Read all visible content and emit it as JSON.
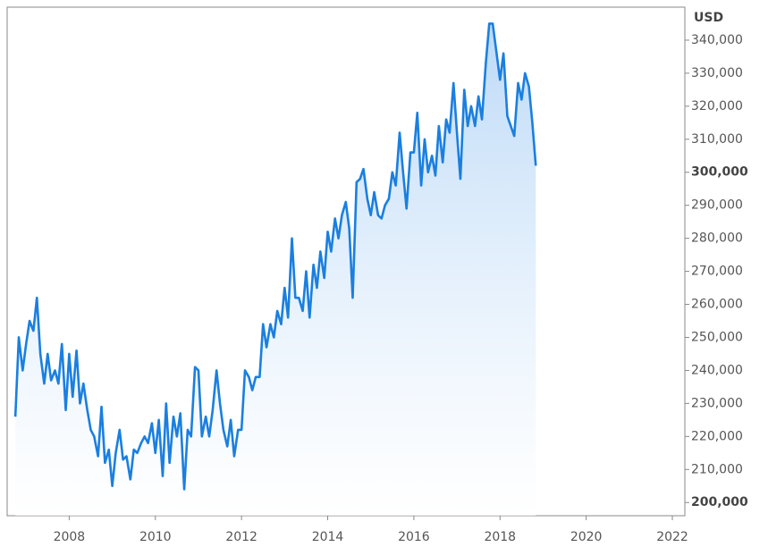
{
  "chart_data": {
    "type": "area-line",
    "y_label": "USD",
    "color": "#1a7fe0",
    "grid": false,
    "xlim": [
      2006.56,
      2022.29
    ],
    "xticks": [
      2008,
      2010,
      2012,
      2014,
      2016,
      2018,
      2020,
      2022
    ],
    "ylim": [
      196000,
      350000
    ],
    "yticks": [
      {
        "value": 200000,
        "label": "200,000",
        "bold": true
      },
      {
        "value": 210000,
        "label": "210,000"
      },
      {
        "value": 220000,
        "label": "220,000"
      },
      {
        "value": 230000,
        "label": "230,000"
      },
      {
        "value": 240000,
        "label": "240,000"
      },
      {
        "value": 250000,
        "label": "250,000"
      },
      {
        "value": 260000,
        "label": "260,000"
      },
      {
        "value": 270000,
        "label": "270,000"
      },
      {
        "value": 280000,
        "label": "280,000"
      },
      {
        "value": 290000,
        "label": "290,000"
      },
      {
        "value": 300000,
        "label": "300,000",
        "bold": true
      },
      {
        "value": 310000,
        "label": "310,000"
      },
      {
        "value": 320000,
        "label": "320,000"
      },
      {
        "value": 330000,
        "label": "330,000"
      },
      {
        "value": 340000,
        "label": "340,000"
      }
    ],
    "x": [
      2006.75,
      2006.83,
      2006.92,
      2007.0,
      2007.08,
      2007.17,
      2007.25,
      2007.33,
      2007.42,
      2007.5,
      2007.58,
      2007.67,
      2007.75,
      2007.83,
      2007.92,
      2008.0,
      2008.08,
      2008.17,
      2008.25,
      2008.33,
      2008.42,
      2008.5,
      2008.58,
      2008.67,
      2008.75,
      2008.83,
      2008.92,
      2009.0,
      2009.08,
      2009.17,
      2009.25,
      2009.33,
      2009.42,
      2009.5,
      2009.58,
      2009.67,
      2009.75,
      2009.83,
      2009.92,
      2010.0,
      2010.08,
      2010.17,
      2010.25,
      2010.33,
      2010.42,
      2010.5,
      2010.58,
      2010.67,
      2010.75,
      2010.83,
      2010.92,
      2011.0,
      2011.08,
      2011.17,
      2011.25,
      2011.33,
      2011.42,
      2011.5,
      2011.58,
      2011.67,
      2011.75,
      2011.83,
      2011.92,
      2012.0,
      2012.08,
      2012.17,
      2012.25,
      2012.33,
      2012.42,
      2012.5,
      2012.58,
      2012.67,
      2012.75,
      2012.83,
      2012.92,
      2013.0,
      2013.08,
      2013.17,
      2013.25,
      2013.33,
      2013.42,
      2013.5,
      2013.58,
      2013.67,
      2013.75,
      2013.83,
      2013.92,
      2014.0,
      2014.08,
      2014.17,
      2014.25,
      2014.33,
      2014.42,
      2014.5,
      2014.58,
      2014.67,
      2014.75,
      2014.83,
      2014.92,
      2015.0,
      2015.08,
      2015.17,
      2015.25,
      2015.33,
      2015.42,
      2015.5,
      2015.58,
      2015.67,
      2015.75,
      2015.83,
      2015.92,
      2016.0,
      2016.08,
      2016.17,
      2016.25,
      2016.33,
      2016.42,
      2016.5,
      2016.58,
      2016.67,
      2016.75,
      2016.83,
      2016.92,
      2017.0,
      2017.08,
      2017.17,
      2017.25,
      2017.33,
      2017.42,
      2017.5,
      2017.58,
      2017.67,
      2017.75,
      2017.83,
      2017.92,
      2018.0,
      2018.08,
      2018.17,
      2018.25,
      2018.33,
      2018.42,
      2018.5,
      2018.58,
      2018.67,
      2018.75,
      2018.83
    ],
    "values": [
      226000,
      250000,
      240000,
      248000,
      255000,
      252000,
      262000,
      245000,
      236000,
      245000,
      237000,
      240000,
      236000,
      248000,
      228000,
      245000,
      232000,
      246000,
      230000,
      236000,
      228000,
      222000,
      220000,
      214000,
      229000,
      212000,
      216000,
      205000,
      215000,
      222000,
      213000,
      214000,
      207000,
      216000,
      215000,
      218000,
      220000,
      218000,
      224000,
      215000,
      225000,
      208000,
      230000,
      212000,
      226000,
      220000,
      227000,
      204000,
      222000,
      220000,
      241000,
      240000,
      220000,
      226000,
      220000,
      228000,
      240000,
      230000,
      222000,
      217000,
      225000,
      214000,
      222000,
      222000,
      240000,
      238000,
      234000,
      238000,
      238000,
      254000,
      247000,
      254000,
      250000,
      258000,
      254000,
      265000,
      256000,
      280000,
      262000,
      262000,
      258000,
      270000,
      256000,
      272000,
      265000,
      276000,
      268000,
      282000,
      276000,
      286000,
      280000,
      287000,
      291000,
      283000,
      262000,
      297000,
      298000,
      301000,
      292000,
      287000,
      294000,
      287000,
      286000,
      290000,
      292000,
      300000,
      296000,
      312000,
      300000,
      289000,
      306000,
      306000,
      318000,
      296000,
      310000,
      300000,
      305000,
      299000,
      314000,
      303000,
      316000,
      312000,
      327000,
      312000,
      298000,
      325000,
      314000,
      320000,
      314000,
      323000,
      316000,
      333000,
      345000,
      345000,
      336000,
      328000,
      336000,
      317000,
      314000,
      311000,
      327000,
      322000,
      330000,
      326000,
      315000,
      302000
    ]
  }
}
